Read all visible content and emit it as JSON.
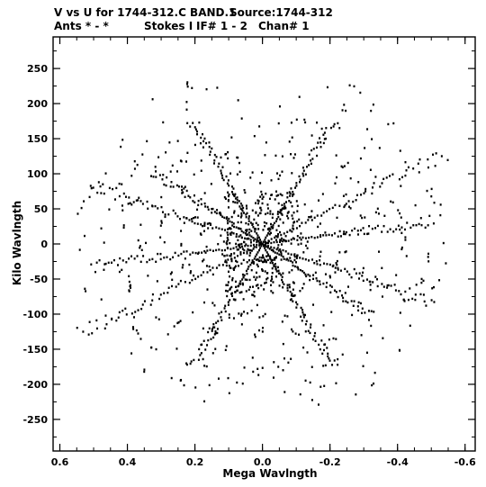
{
  "header": {
    "line1_left": "V vs U for 1744-312.C BAND.1",
    "line1_right": "Source:1744-312",
    "line2_ants": "Ants * - *",
    "line2_stokes": "Stokes I",
    "line2_if": "IF# 1 - 2",
    "line2_chan": "Chan# 1"
  },
  "chart_data": {
    "type": "scatter",
    "title": "V vs U for 1744-312.C BAND.1   Source:1744-312",
    "xlabel": "Mega Wavlngth",
    "ylabel": "Kilo Wavlngth",
    "xlim": [
      0.62,
      -0.63
    ],
    "ylim": [
      -295,
      295
    ],
    "grid": false,
    "x_ticks": [
      {
        "value": 0.6,
        "label": "0.6"
      },
      {
        "value": 0.4,
        "label": "0.4"
      },
      {
        "value": 0.2,
        "label": "0.2"
      },
      {
        "value": 0.0,
        "label": "0.0"
      },
      {
        "value": -0.2,
        "label": "-0.2"
      },
      {
        "value": -0.4,
        "label": "-0.4"
      },
      {
        "value": -0.6,
        "label": "-0.6"
      }
    ],
    "y_ticks": [
      {
        "value": 250,
        "label": "250"
      },
      {
        "value": 200,
        "label": "200"
      },
      {
        "value": 150,
        "label": "150"
      },
      {
        "value": 100,
        "label": "100"
      },
      {
        "value": 50,
        "label": "50"
      },
      {
        "value": 0,
        "label": "0"
      },
      {
        "value": -50,
        "label": "-50"
      },
      {
        "value": -100,
        "label": "-100"
      },
      {
        "value": -150,
        "label": "-150"
      },
      {
        "value": -200,
        "label": "-200"
      },
      {
        "value": -250,
        "label": "-250"
      }
    ],
    "series": [
      {
        "color": "#000000",
        "arms": [
          {
            "angle_deg": 62,
            "max_mwl": 0.45
          },
          {
            "angle_deg": 118,
            "max_mwl": 0.45
          },
          {
            "angle_deg": 152,
            "max_mwl": 0.62
          },
          {
            "angle_deg": 172,
            "max_mwl": 0.52
          },
          {
            "angle_deg": 20,
            "max_mwl": 0.55
          },
          {
            "angle_deg": 35,
            "max_mwl": 0.4
          }
        ],
        "points_per_arm": 60,
        "arc_tracks": 9
      }
    ]
  }
}
